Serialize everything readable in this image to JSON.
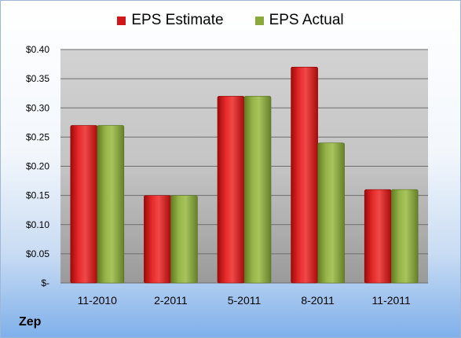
{
  "company": "Zep",
  "colors": {
    "estimate": "#d01818",
    "actual": "#8aaa3c"
  },
  "chart_data": {
    "type": "bar",
    "categories": [
      "11-2010",
      "2-2011",
      "5-2011",
      "8-2011",
      "11-2011"
    ],
    "series": [
      {
        "name": "EPS Estimate",
        "values": [
          0.27,
          0.15,
          0.32,
          0.37,
          0.16
        ]
      },
      {
        "name": "EPS Actual",
        "values": [
          0.27,
          0.15,
          0.32,
          0.24,
          0.16
        ]
      }
    ],
    "yticks": [
      "$-",
      "$0.05",
      "$0.10",
      "$0.15",
      "$0.20",
      "$0.25",
      "$0.30",
      "$0.35",
      "$0.40"
    ],
    "ylim": [
      0,
      0.4
    ],
    "grid": true,
    "legend": "top-center"
  }
}
